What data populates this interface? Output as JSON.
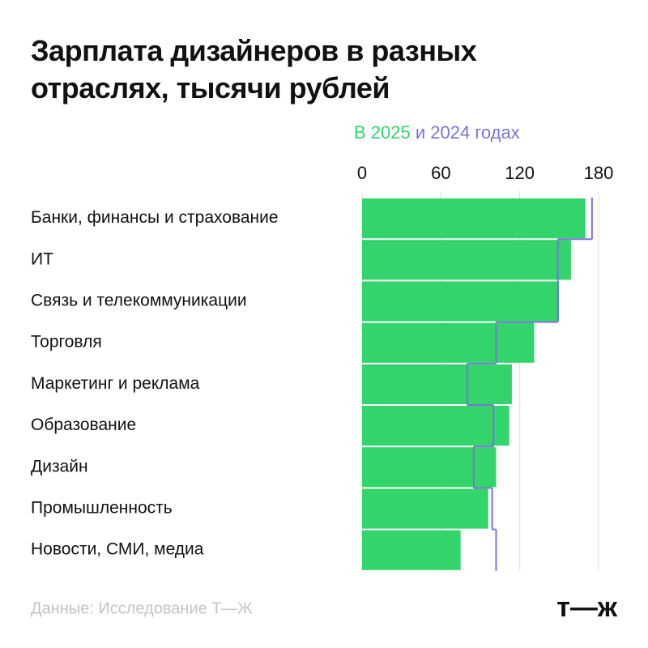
{
  "chart_data": {
    "type": "bar",
    "title": "Зарплата дизайнеров в разных отраслях, тысячи рублей",
    "categories": [
      "Банки, финансы и страхование",
      "ИТ",
      "Связь и телекоммуникации",
      "Торговля",
      "Маркетинг и реклама",
      "Образование",
      "Дизайн",
      "Промышленность",
      "Новости, СМИ, медиа"
    ],
    "series": [
      {
        "name": "В 2025",
        "color": "#33d46b",
        "values": [
          170,
          159,
          150,
          131,
          114,
          112,
          102,
          96,
          75
        ]
      },
      {
        "name": "и 2024 годах",
        "color": "#7b73d9",
        "values": [
          175,
          149,
          149,
          102,
          80,
          100,
          85,
          99,
          102
        ]
      }
    ],
    "xlim": [
      0,
      180
    ],
    "xticks": [
      0,
      60,
      120,
      180
    ],
    "grid": true,
    "source": "Данные: Исследование Т—Ж",
    "logo": "т—ж"
  }
}
